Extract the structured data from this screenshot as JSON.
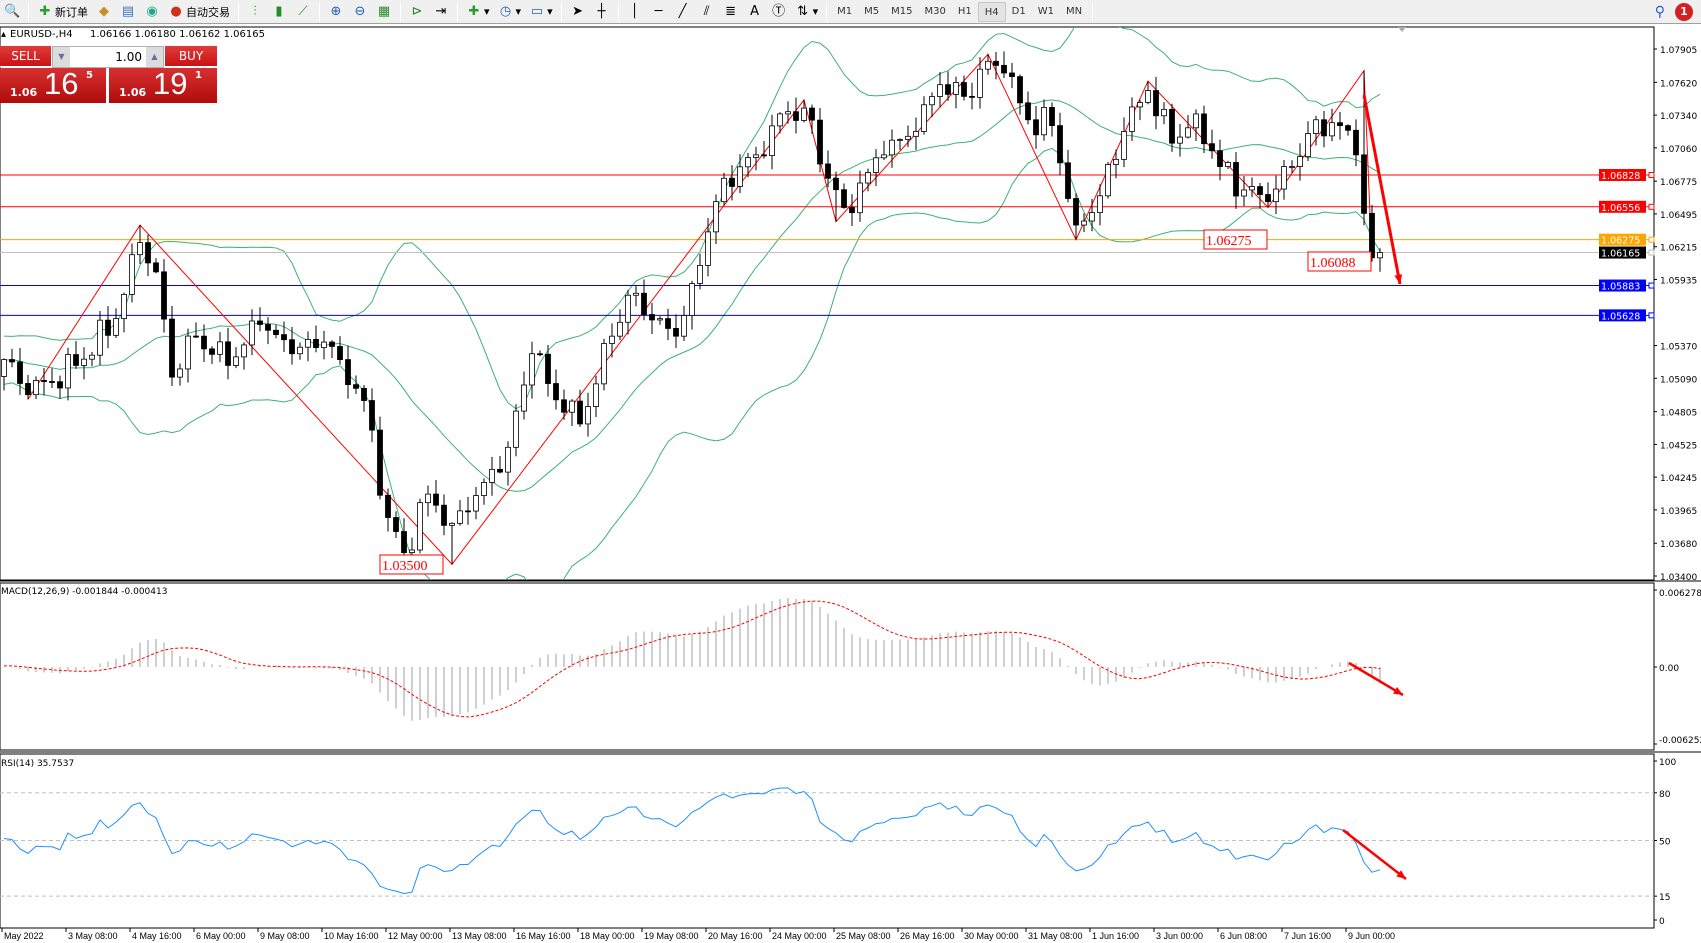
{
  "toolbar": {
    "new_order_label": "新订单",
    "auto_trading_label": "自动交易",
    "timeframes": [
      "M1",
      "M5",
      "M15",
      "M30",
      "H1",
      "H4",
      "D1",
      "W1",
      "MN"
    ],
    "active_timeframe": "H4",
    "notification_count": "1",
    "icons": [
      "new-order-icon",
      "market-watch-icon",
      "data-window-icon",
      "signals-icon",
      "auto-trading-icon",
      "bar-chart-icon",
      "candlestick-icon",
      "line-chart-icon",
      "zoom-in-icon",
      "zoom-out-icon",
      "tile-windows-icon",
      "auto-scroll-icon",
      "chart-shift-icon",
      "indicators-icon",
      "periods-icon",
      "templates-icon",
      "cursor-icon",
      "crosshair-icon",
      "vertical-line-icon",
      "horizontal-line-icon",
      "trendline-icon",
      "equidistant-channel-icon",
      "fibonacci-icon",
      "text-icon",
      "text-label-icon",
      "arrows-icon",
      "search-icon",
      "notifications-icon"
    ]
  },
  "chart_header": {
    "symbol_timeframe": "EURUSD-,H4",
    "ohlc": "1.06166 1.06180 1.06162 1.06165"
  },
  "trade_panel": {
    "sell_label": "SELL",
    "buy_label": "BUY",
    "lot": "1.00",
    "sell_price": {
      "small": "1.06",
      "big": "16",
      "point": "5"
    },
    "buy_price": {
      "small": "1.06",
      "big": "19",
      "point": "1"
    }
  },
  "chart_data": {
    "type": "candlestick",
    "symbol": "EURUSD-",
    "timeframe": "H4",
    "price_axis": {
      "range": [
        1.034,
        1.0815
      ],
      "ticks": [
        "1.07905",
        "1.07620",
        "1.07340",
        "1.07060",
        "1.06775",
        "1.06495",
        "1.06215",
        "1.05935",
        "1.05370",
        "1.05090",
        "1.04805",
        "1.04525",
        "1.04245",
        "1.03965",
        "1.03680",
        "1.03400"
      ]
    },
    "time_axis": {
      "labels": [
        "May 2022",
        "3 May 08:00",
        "4 May 16:00",
        "6 May 00:00",
        "9 May 08:00",
        "10 May 16:00",
        "12 May 00:00",
        "13 May 08:00",
        "16 May 16:00",
        "18 May 00:00",
        "19 May 08:00",
        "20 May 16:00",
        "24 May 00:00",
        "25 May 08:00",
        "26 May 16:00",
        "30 May 00:00",
        "31 May 08:00",
        "1 Jun 16:00",
        "3 Jun 00:00",
        "6 Jun 08:00",
        "7 Jun 16:00",
        "9 Jun 00:00"
      ]
    },
    "approx_close_path": [
      [
        "2 May 00:00",
        1.0525
      ],
      [
        "2 May 12:00",
        1.0495
      ],
      [
        "3 May 12:00",
        1.052
      ],
      [
        "4 May 08:00",
        1.056
      ],
      [
        "4 May 20:00",
        1.0625
      ],
      [
        "5 May 04:00",
        1.06
      ],
      [
        "5 May 12:00",
        1.051
      ],
      [
        "6 May 00:00",
        1.0545
      ],
      [
        "6 May 16:00",
        1.052
      ],
      [
        "9 May 08:00",
        1.0555
      ],
      [
        "10 May 00:00",
        1.053
      ],
      [
        "10 May 16:00",
        1.054
      ],
      [
        "11 May 00:00",
        1.0525
      ],
      [
        "11 May 12:00",
        1.049
      ],
      [
        "12 May 00:00",
        1.039
      ],
      [
        "12 May 08:00",
        1.036
      ],
      [
        "12 May 20:00",
        1.041
      ],
      [
        "13 May 08:00",
        1.0385
      ],
      [
        "16 May 00:00",
        1.042
      ],
      [
        "16 May 12:00",
        1.045
      ],
      [
        "17 May 00:00",
        1.053
      ],
      [
        "17 May 16:00",
        1.048
      ],
      [
        "18 May 00:00",
        1.047
      ],
      [
        "18 May 16:00",
        1.0545
      ],
      [
        "19 May 00:00",
        1.058
      ],
      [
        "19 May 16:00",
        1.056
      ],
      [
        "20 May 00:00",
        1.0545
      ],
      [
        "20 May 08:00",
        1.059
      ],
      [
        "20 May 20:00",
        1.066
      ],
      [
        "23 May 00:00",
        1.068
      ],
      [
        "23 May 16:00",
        1.07
      ],
      [
        "24 May 04:00",
        1.0735
      ],
      [
        "24 May 16:00",
        1.074
      ],
      [
        "25 May 04:00",
        1.068
      ],
      [
        "25 May 12:00",
        1.0655
      ],
      [
        "26 May 08:00",
        1.07
      ],
      [
        "27 May 00:00",
        1.072
      ],
      [
        "27 May 12:00",
        1.076
      ],
      [
        "30 May 00:00",
        1.075
      ],
      [
        "30 May 12:00",
        1.078
      ],
      [
        "30 May 20:00",
        1.077
      ],
      [
        "31 May 08:00",
        1.073
      ],
      [
        "31 May 20:00",
        1.0725
      ],
      [
        "1 Jun 08:00",
        1.064
      ],
      [
        "1 Jun 20:00",
        1.0665
      ],
      [
        "2 Jun 08:00",
        1.072
      ],
      [
        "2 Jun 20:00",
        1.0755
      ],
      [
        "3 Jun 08:00",
        1.071
      ],
      [
        "3 Jun 20:00",
        1.0735
      ],
      [
        "6 Jun 08:00",
        1.069
      ],
      [
        "6 Jun 20:00",
        1.067
      ],
      [
        "7 Jun 08:00",
        1.066
      ],
      [
        "7 Jun 20:00",
        1.069
      ],
      [
        "8 Jun 08:00",
        1.073
      ],
      [
        "8 Jun 20:00",
        1.0725
      ],
      [
        "9 Jun 04:00",
        1.07
      ],
      [
        "9 Jun 08:00",
        1.065
      ],
      [
        "9 Jun 12:00",
        1.0612
      ],
      [
        "9 Jun 16:00",
        1.06165
      ]
    ],
    "zigzag": [
      [
        "2 May 12:00",
        1.0491
      ],
      [
        "4 May 20:00",
        1.064
      ],
      [
        "13 May 08:00",
        1.035
      ],
      [
        "24 May 16:00",
        1.0747
      ],
      [
        "25 May 08:00",
        1.0643
      ],
      [
        "30 May 12:00",
        1.0786
      ],
      [
        "1 Jun 08:00",
        1.06275
      ],
      [
        "2 Jun 20:00",
        1.0763
      ],
      [
        "7 Jun 08:00",
        1.0655
      ],
      [
        "9 Jun 08:00",
        1.0772
      ],
      [
        "9 Jun 12:00",
        1.06088
      ]
    ],
    "annotations": [
      {
        "text": "1.03500",
        "time": "13 May 08:00",
        "price": 1.035
      },
      {
        "text": "1.06275",
        "time": "1 Jun 08:00",
        "price": 1.06275
      },
      {
        "text": "1.06088",
        "time": "9 Jun 12:00",
        "price": 1.06088
      }
    ],
    "levels": [
      {
        "price": "1.06828",
        "color": "#ff0000"
      },
      {
        "price": "1.06556",
        "color": "#ff0000"
      },
      {
        "price": "1.06275",
        "color": "#ffa500"
      },
      {
        "price": "1.06165",
        "color": "#c0c0c0",
        "label_bg": "#000000"
      },
      {
        "price": "1.05883",
        "color": "#0000ff"
      },
      {
        "price": "1.05628",
        "color": "#0000ff"
      }
    ],
    "bollinger": {
      "period": 20,
      "deviation": 2,
      "color": "#3cb371"
    },
    "zigzag_color": "#ff0000",
    "macd": {
      "label": "MACD(12,26,9) -0.001844 -0.000413",
      "axis_ticks": [
        "0.006278",
        "0.00",
        "-0.006252"
      ],
      "range": [
        -0.006252,
        0.006278
      ],
      "histogram_color": "#c0c0c0",
      "signal_color": "#ff0000"
    },
    "rsi": {
      "label": "RSI(14) 35.7537",
      "axis_ticks": [
        "100",
        "80",
        "50",
        "15",
        "0"
      ],
      "levels": [
        80,
        50,
        15
      ],
      "color": "#1e90ff"
    },
    "drawn_arrows": [
      "down-arrow-price",
      "down-arrow-macd",
      "down-arrow-rsi"
    ]
  }
}
